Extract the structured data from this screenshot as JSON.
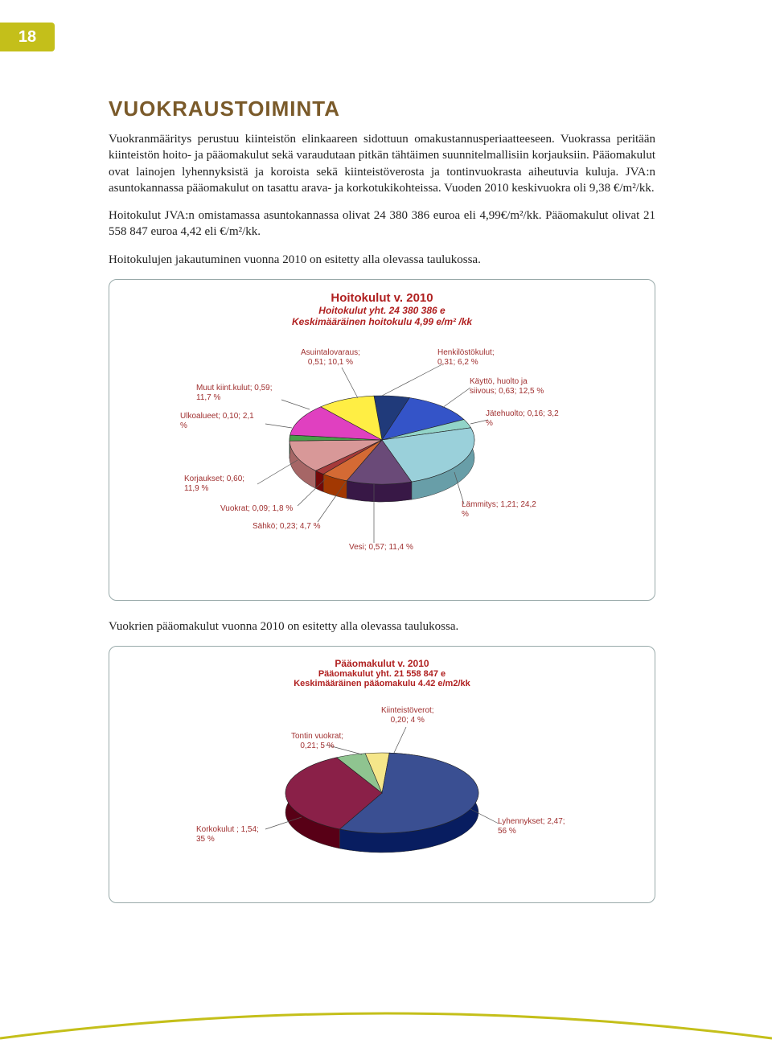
{
  "page_number": "18",
  "section_title": "VUOKRAUSTOIMINTA",
  "paragraphs": {
    "p1": "Vuokranmääritys perustuu kiinteistön elinkaareen sidottuun omakustannusperiaatteeseen. Vuokrassa peritään kiinteistön hoito- ja pääomakulut sekä varaudutaan pitkän tähtäimen suunnitelmallisiin korjauksiin. Pääomakulut ovat lainojen lyhennyksistä ja koroista sekä kiinteistöverosta ja tontinvuokrasta aiheutuvia kuluja. JVA:n asuntokannassa pääomakulut on tasattu arava- ja korkotukikohteissa. Vuoden 2010 keskivuokra oli 9,38 €/m²/kk.",
    "p2": "Hoitokulut JVA:n omistamassa asuntokannassa olivat 24 380 386 euroa eli 4,99€/m²/kk. Pääomakulut olivat 21 558 847 euroa 4,42 eli  €/m²/kk.",
    "p3": "Hoitokulujen jakautuminen vuonna 2010 on esitetty alla olevassa taulukossa.",
    "p4": "Vuokrien pääomakulut vuonna 2010 on esitetty alla olevassa taulukossa."
  },
  "chart1": {
    "type": "pie",
    "title": "Hoitokulut v. 2010",
    "subtitle": "Hoitokulut yht. 24 380 386 e",
    "subtitle2": "Keskimääräinen hoitokulu 4,99 e/m² /kk",
    "title_color": "#b02020",
    "title_fontsize": 15,
    "slices": [
      {
        "label": "Henkilöstökulut;",
        "line2": "0,31; 6,2 %",
        "value": 6.2,
        "color": "#203a7a"
      },
      {
        "label": "Käyttö, huolto ja",
        "line2": "siivous; 0,63; 12,5 %",
        "value": 12.5,
        "color": "#3454c8"
      },
      {
        "label": "Jätehuolto; 0,16; 3,2",
        "line2": "%",
        "value": 3.2,
        "color": "#92d4c8"
      },
      {
        "label": "Lämmitys; 1,21; 24,2",
        "line2": "%",
        "value": 24.2,
        "color": "#9ad0da"
      },
      {
        "label": "Vesi; 0,57; 11,4 %",
        "line2": "",
        "value": 11.4,
        "color": "#6a4a78"
      },
      {
        "label": "Sähkö; 0,23; 4,7 %",
        "line2": "",
        "value": 4.7,
        "color": "#d46a34"
      },
      {
        "label": "Vuokrat; 0,09; 1,8 %",
        "line2": "",
        "value": 1.8,
        "color": "#a63a3a"
      },
      {
        "label": "Korjaukset; 0,60;",
        "line2": "11,9 %",
        "value": 11.9,
        "color": "#d89898"
      },
      {
        "label": "Ulkoalueet; 0,10; 2,1",
        "line2": "%",
        "value": 2.1,
        "color": "#48a048"
      },
      {
        "label": "Muut kiint.kulut; 0,59;",
        "line2": "11,7 %",
        "value": 11.7,
        "color": "#e040c0"
      },
      {
        "label": "Asuintalovaraus;",
        "line2": "0,51; 10,1 %",
        "value": 10.1,
        "color": "#ffee44"
      }
    ],
    "label_color": "#a03030",
    "edge_colors": {
      "1_top": "#b89820",
      "2_top": "#c8a468"
    }
  },
  "chart2": {
    "type": "pie",
    "title": "Pääomakulut v. 2010",
    "subtitle": "Pääomakulut yht. 21 558 847 e",
    "subtitle2": "Keskimääräinen pääomakulu 4.42 e/m2/kk",
    "title_color": "#b02020",
    "title_fontsize": 12,
    "slices": [
      {
        "label": "Kiinteistöverot;",
        "line2": "0,20; 4 %",
        "value": 4,
        "color": "#f5e68a"
      },
      {
        "label": "Lyhennykset; 2,47;",
        "line2": "56 %",
        "value": 56,
        "color": "#3a4f92"
      },
      {
        "label": "Korkokulut ; 1,54;",
        "line2": "35 %",
        "value": 35,
        "color": "#8a2048"
      },
      {
        "label": "Tontin vuokrat;",
        "line2": "0,21; 5 %",
        "value": 5,
        "color": "#8fc490"
      }
    ],
    "label_color": "#a03030"
  }
}
